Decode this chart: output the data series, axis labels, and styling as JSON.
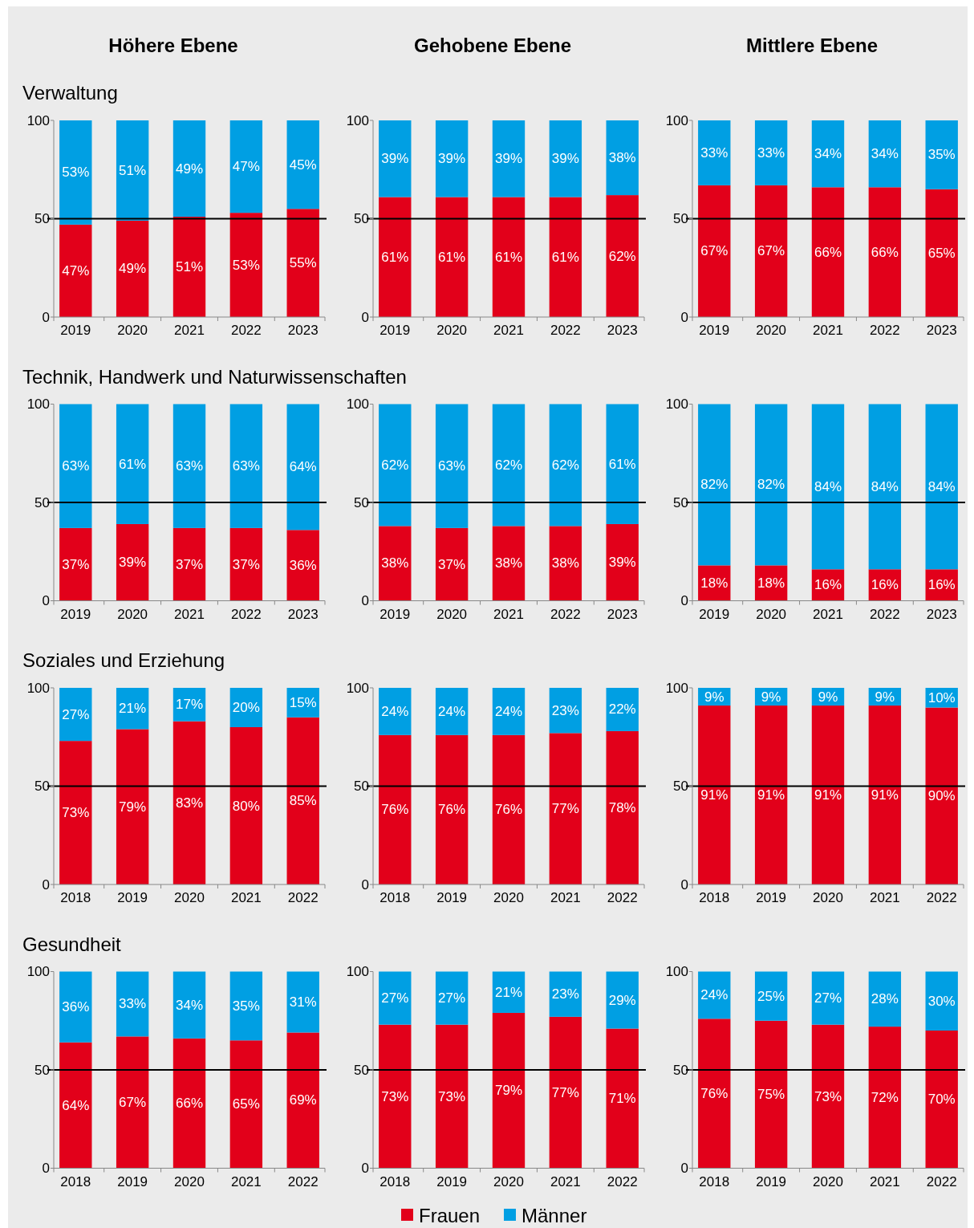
{
  "chart_data": [
    {
      "type": "bar",
      "stacked": true,
      "title": "Höhere Ebene",
      "subtitle": "Verwaltung",
      "categories": [
        "2019",
        "2020",
        "2021",
        "2022",
        "2023"
      ],
      "ylim": [
        0,
        100
      ],
      "yticks": [
        0,
        50,
        100
      ],
      "ref_lines": [
        {
          "axis": "y",
          "value": 50,
          "color": "#000000"
        }
      ],
      "series": [
        {
          "color": "#e2001a",
          "values": [
            47,
            49,
            51,
            53,
            55
          ],
          "value_labels": [
            "47%",
            "49%",
            "51%",
            "53%",
            "55%"
          ]
        },
        {
          "color": "#009fe3",
          "values": [
            53,
            51,
            49,
            47,
            45
          ],
          "value_labels": [
            "53%",
            "51%",
            "49%",
            "47%",
            "45%"
          ]
        }
      ]
    },
    {
      "type": "bar",
      "stacked": true,
      "title": "Gehobene Ebene",
      "categories": [
        "2019",
        "2020",
        "2021",
        "2022",
        "2023"
      ],
      "ylim": [
        0,
        100
      ],
      "yticks": [
        0,
        50,
        100
      ],
      "ref_lines": [
        {
          "axis": "y",
          "value": 50,
          "color": "#000000"
        }
      ],
      "series": [
        {
          "color": "#e2001a",
          "values": [
            61,
            61,
            61,
            61,
            62
          ],
          "value_labels": [
            "61%",
            "61%",
            "61%",
            "61%",
            "62%"
          ]
        },
        {
          "color": "#009fe3",
          "values": [
            39,
            39,
            39,
            39,
            38
          ],
          "value_labels": [
            "39%",
            "39%",
            "39%",
            "39%",
            "38%"
          ]
        }
      ]
    },
    {
      "type": "bar",
      "stacked": true,
      "title": "Mittlere Ebene",
      "categories": [
        "2019",
        "2020",
        "2021",
        "2022",
        "2023"
      ],
      "ylim": [
        0,
        100
      ],
      "yticks": [
        0,
        50,
        100
      ],
      "ref_lines": [
        {
          "axis": "y",
          "value": 50,
          "color": "#000000"
        }
      ],
      "series": [
        {
          "color": "#e2001a",
          "values": [
            67,
            67,
            66,
            66,
            65
          ],
          "value_labels": [
            "67%",
            "67%",
            "66%",
            "66%",
            "65%"
          ]
        },
        {
          "color": "#009fe3",
          "values": [
            33,
            33,
            34,
            34,
            35
          ],
          "value_labels": [
            "33%",
            "33%",
            "34%",
            "34%",
            "35%"
          ]
        }
      ]
    },
    {
      "type": "bar",
      "stacked": true,
      "subtitle": "Technik, Handwerk und Naturwissenschaften",
      "categories": [
        "2019",
        "2020",
        "2021",
        "2022",
        "2023"
      ],
      "ylim": [
        0,
        100
      ],
      "yticks": [
        0,
        50,
        100
      ],
      "ref_lines": [
        {
          "axis": "y",
          "value": 50,
          "color": "#000000"
        }
      ],
      "series": [
        {
          "color": "#e2001a",
          "values": [
            37,
            39,
            37,
            37,
            36
          ],
          "value_labels": [
            "37%",
            "39%",
            "37%",
            "37%",
            "36%"
          ]
        },
        {
          "color": "#009fe3",
          "values": [
            63,
            61,
            63,
            63,
            64
          ],
          "value_labels": [
            "63%",
            "61%",
            "63%",
            "63%",
            "64%"
          ]
        }
      ]
    },
    {
      "type": "bar",
      "stacked": true,
      "categories": [
        "2019",
        "2020",
        "2021",
        "2022",
        "2023"
      ],
      "ylim": [
        0,
        100
      ],
      "yticks": [
        0,
        50,
        100
      ],
      "ref_lines": [
        {
          "axis": "y",
          "value": 50,
          "color": "#000000"
        }
      ],
      "series": [
        {
          "color": "#e2001a",
          "values": [
            38,
            37,
            38,
            38,
            39
          ],
          "value_labels": [
            "38%",
            "37%",
            "38%",
            "38%",
            "39%"
          ]
        },
        {
          "color": "#009fe3",
          "values": [
            62,
            63,
            62,
            62,
            61
          ],
          "value_labels": [
            "62%",
            "63%",
            "62%",
            "62%",
            "61%"
          ]
        }
      ]
    },
    {
      "type": "bar",
      "stacked": true,
      "categories": [
        "2019",
        "2020",
        "2021",
        "2022",
        "2023"
      ],
      "ylim": [
        0,
        100
      ],
      "yticks": [
        0,
        50,
        100
      ],
      "ref_lines": [
        {
          "axis": "y",
          "value": 50,
          "color": "#000000"
        }
      ],
      "series": [
        {
          "color": "#e2001a",
          "values": [
            18,
            18,
            16,
            16,
            16
          ],
          "value_labels": [
            "18%",
            "18%",
            "16%",
            "16%",
            "16%"
          ]
        },
        {
          "color": "#009fe3",
          "values": [
            82,
            82,
            84,
            84,
            84
          ],
          "value_labels": [
            "82%",
            "82%",
            "84%",
            "84%",
            "84%"
          ]
        }
      ]
    },
    {
      "type": "bar",
      "stacked": true,
      "subtitle": "Soziales und Erziehung",
      "categories": [
        "2018",
        "2019",
        "2020",
        "2021",
        "2022"
      ],
      "ylim": [
        0,
        100
      ],
      "yticks": [
        0,
        50,
        100
      ],
      "ref_lines": [
        {
          "axis": "y",
          "value": 50,
          "color": "#000000"
        }
      ],
      "series": [
        {
          "color": "#e2001a",
          "values": [
            73,
            79,
            83,
            80,
            85
          ],
          "value_labels": [
            "73%",
            "79%",
            "83%",
            "80%",
            "85%"
          ]
        },
        {
          "color": "#009fe3",
          "values": [
            27,
            21,
            17,
            20,
            15
          ],
          "value_labels": [
            "27%",
            "21%",
            "17%",
            "20%",
            "15%"
          ]
        }
      ]
    },
    {
      "type": "bar",
      "stacked": true,
      "categories": [
        "2018",
        "2019",
        "2020",
        "2021",
        "2022"
      ],
      "ylim": [
        0,
        100
      ],
      "yticks": [
        0,
        50,
        100
      ],
      "ref_lines": [
        {
          "axis": "y",
          "value": 50,
          "color": "#000000"
        }
      ],
      "series": [
        {
          "color": "#e2001a",
          "values": [
            76,
            76,
            76,
            77,
            78
          ],
          "value_labels": [
            "76%",
            "76%",
            "76%",
            "77%",
            "78%"
          ]
        },
        {
          "color": "#009fe3",
          "values": [
            24,
            24,
            24,
            23,
            22
          ],
          "value_labels": [
            "24%",
            "24%",
            "24%",
            "23%",
            "22%"
          ]
        }
      ]
    },
    {
      "type": "bar",
      "stacked": true,
      "categories": [
        "2018",
        "2019",
        "2020",
        "2021",
        "2022"
      ],
      "ylim": [
        0,
        100
      ],
      "yticks": [
        0,
        50,
        100
      ],
      "ref_lines": [
        {
          "axis": "y",
          "value": 50,
          "color": "#000000"
        }
      ],
      "series": [
        {
          "color": "#e2001a",
          "values": [
            91,
            91,
            91,
            91,
            90
          ],
          "value_labels": [
            "91%",
            "91%",
            "91%",
            "91%",
            "90%"
          ]
        },
        {
          "color": "#009fe3",
          "values": [
            9,
            9,
            9,
            9,
            10
          ],
          "value_labels": [
            "9%",
            "9%",
            "9%",
            "9%",
            "10%"
          ]
        }
      ]
    },
    {
      "type": "bar",
      "stacked": true,
      "subtitle": "Gesundheit",
      "categories": [
        "2018",
        "2019",
        "2020",
        "2021",
        "2022"
      ],
      "ylim": [
        0,
        100
      ],
      "yticks": [
        0,
        50,
        100
      ],
      "ref_lines": [
        {
          "axis": "y",
          "value": 50,
          "color": "#000000"
        }
      ],
      "series": [
        {
          "color": "#e2001a",
          "values": [
            64,
            67,
            66,
            65,
            69
          ],
          "value_labels": [
            "64%",
            "67%",
            "66%",
            "65%",
            "69%"
          ]
        },
        {
          "color": "#009fe3",
          "values": [
            36,
            33,
            34,
            35,
            31
          ],
          "value_labels": [
            "36%",
            "33%",
            "34%",
            "35%",
            "31%"
          ]
        }
      ]
    },
    {
      "type": "bar",
      "stacked": true,
      "categories": [
        "2018",
        "2019",
        "2020",
        "2021",
        "2022"
      ],
      "ylim": [
        0,
        100
      ],
      "yticks": [
        0,
        50,
        100
      ],
      "ref_lines": [
        {
          "axis": "y",
          "value": 50,
          "color": "#000000"
        }
      ],
      "series": [
        {
          "color": "#e2001a",
          "values": [
            73,
            73,
            79,
            77,
            71
          ],
          "value_labels": [
            "73%",
            "73%",
            "79%",
            "77%",
            "71%"
          ]
        },
        {
          "color": "#009fe3",
          "values": [
            27,
            27,
            21,
            23,
            29
          ],
          "value_labels": [
            "27%",
            "27%",
            "21%",
            "23%",
            "29%"
          ]
        }
      ]
    },
    {
      "type": "bar",
      "stacked": true,
      "legend": "bottom",
      "categories": [
        "2018",
        "2019",
        "2020",
        "2021",
        "2022"
      ],
      "ylim": [
        0,
        100
      ],
      "yticks": [
        0,
        50,
        100
      ],
      "ref_lines": [
        {
          "axis": "y",
          "value": 50,
          "color": "#000000"
        }
      ],
      "series": [
        {
          "name": "Frauen",
          "color": "#e2001a",
          "values": [
            76,
            75,
            73,
            72,
            70
          ],
          "value_labels": [
            "76%",
            "75%",
            "73%",
            "72%",
            "70%"
          ]
        },
        {
          "name": "Männer",
          "color": "#009fe3",
          "values": [
            24,
            25,
            27,
            28,
            30
          ],
          "value_labels": [
            "24%",
            "25%",
            "27%",
            "28%",
            "30%"
          ]
        }
      ]
    }
  ]
}
